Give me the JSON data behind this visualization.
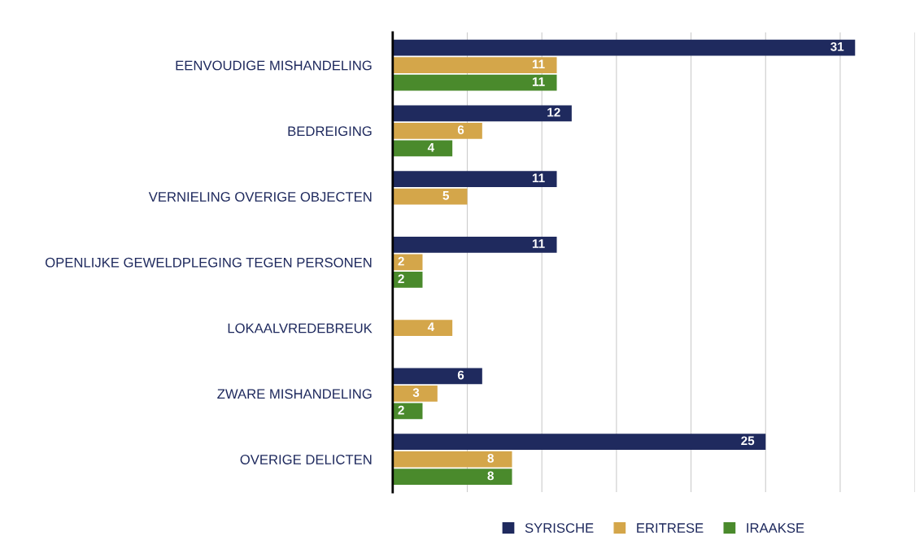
{
  "chart_data": {
    "type": "bar",
    "orientation": "horizontal",
    "categories": [
      "EENVOUDIGE MISHANDELING",
      "BEDREIGING",
      "VERNIELING OVERIGE OBJECTEN",
      "OPENLIJKE GEWELDPLEGING TEGEN PERSONEN",
      "LOKAALVREDEBREUK",
      "ZWARE MISHANDELING",
      "OVERIGE DELICTEN"
    ],
    "series": [
      {
        "name": "SYRISCHE",
        "color": "#1f2a5e",
        "values": [
          31,
          12,
          11,
          11,
          null,
          6,
          25
        ]
      },
      {
        "name": "ERITRESE",
        "color": "#d4a64a",
        "values": [
          11,
          6,
          5,
          2,
          4,
          3,
          8
        ]
      },
      {
        "name": "IRAAKSE",
        "color": "#4a8a2c",
        "values": [
          11,
          4,
          null,
          2,
          null,
          2,
          8
        ]
      }
    ],
    "xlim": [
      0,
      35
    ],
    "xticks": [
      {
        "value": 0,
        "label": null
      },
      {
        "value": 5,
        "label": null
      },
      {
        "value": 10,
        "label": null
      },
      {
        "value": 15,
        "label": null
      },
      {
        "value": 20,
        "label": null
      },
      {
        "value": 25,
        "label": null
      },
      {
        "value": 30,
        "label": null
      },
      {
        "value": 35,
        "label": null
      }
    ],
    "grid": "x",
    "legend": "bottom",
    "data_labels": true,
    "tick_labels": "y"
  }
}
